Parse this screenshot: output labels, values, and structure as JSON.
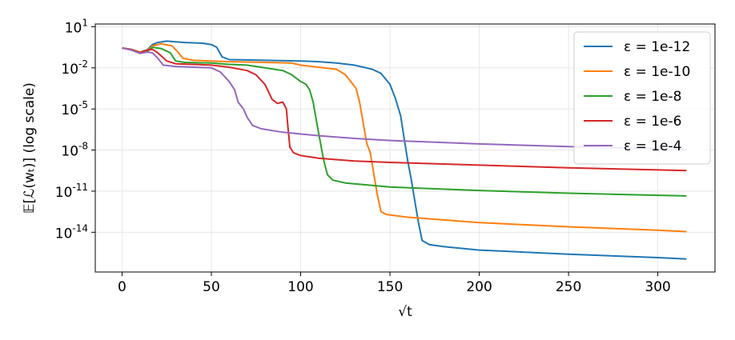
{
  "chart_data": {
    "type": "line",
    "xlabel": "√t",
    "ylabel": "𝔼[ℒ(wₜ)] (log scale)",
    "xlim": [
      -15,
      332
    ],
    "ylim_log10": [
      -16.9,
      1.2
    ],
    "y_scale": "log",
    "grid": true,
    "legend_position": "top-right",
    "x_ticks": [
      0,
      50,
      100,
      150,
      200,
      250,
      300
    ],
    "y_ticks": [
      {
        "value": 1,
        "base": "10",
        "exp": "1"
      },
      {
        "value": -2,
        "base": "10",
        "exp": "-2"
      },
      {
        "value": -5,
        "base": "10",
        "exp": "-5"
      },
      {
        "value": -8,
        "base": "10",
        "exp": "-8"
      },
      {
        "value": -11,
        "base": "10",
        "exp": "-11"
      },
      {
        "value": -14,
        "base": "10",
        "exp": "-14"
      }
    ],
    "series": [
      {
        "name": "ε = 1e-12",
        "color": "#1f77b4",
        "points": [
          [
            0,
            -0.55
          ],
          [
            5,
            -0.65
          ],
          [
            10,
            -0.85
          ],
          [
            14,
            -0.7
          ],
          [
            17,
            -0.3
          ],
          [
            20,
            -0.15
          ],
          [
            25,
            -0.05
          ],
          [
            35,
            -0.15
          ],
          [
            45,
            -0.2
          ],
          [
            50,
            -0.3
          ],
          [
            53,
            -0.5
          ],
          [
            56,
            -1.2
          ],
          [
            60,
            -1.4
          ],
          [
            80,
            -1.45
          ],
          [
            100,
            -1.5
          ],
          [
            110,
            -1.55
          ],
          [
            120,
            -1.65
          ],
          [
            130,
            -1.8
          ],
          [
            140,
            -2.1
          ],
          [
            145,
            -2.4
          ],
          [
            150,
            -3.2
          ],
          [
            153,
            -4.2
          ],
          [
            156,
            -5.5
          ],
          [
            158,
            -7.2
          ],
          [
            160,
            -8.8
          ],
          [
            162,
            -10.2
          ],
          [
            164,
            -11.8
          ],
          [
            166,
            -13.3
          ],
          [
            168,
            -14.6
          ],
          [
            172,
            -14.9
          ],
          [
            180,
            -15.05
          ],
          [
            200,
            -15.3
          ],
          [
            250,
            -15.6
          ],
          [
            300,
            -15.85
          ],
          [
            316,
            -15.95
          ]
        ]
      },
      {
        "name": "ε = 1e-10",
        "color": "#ff7f0e",
        "points": [
          [
            0,
            -0.55
          ],
          [
            5,
            -0.65
          ],
          [
            10,
            -0.85
          ],
          [
            14,
            -0.75
          ],
          [
            17,
            -0.4
          ],
          [
            22,
            -0.25
          ],
          [
            28,
            -0.4
          ],
          [
            31,
            -0.8
          ],
          [
            34,
            -1.3
          ],
          [
            40,
            -1.45
          ],
          [
            60,
            -1.55
          ],
          [
            80,
            -1.6
          ],
          [
            95,
            -1.65
          ],
          [
            100,
            -1.8
          ],
          [
            110,
            -1.95
          ],
          [
            120,
            -2.1
          ],
          [
            125,
            -2.5
          ],
          [
            128,
            -3.0
          ],
          [
            131,
            -3.5
          ],
          [
            133,
            -4.5
          ],
          [
            135,
            -6.0
          ],
          [
            137,
            -7.5
          ],
          [
            139,
            -8.2
          ],
          [
            141,
            -9.8
          ],
          [
            143,
            -11.3
          ],
          [
            145,
            -12.5
          ],
          [
            148,
            -12.7
          ],
          [
            160,
            -12.9
          ],
          [
            200,
            -13.3
          ],
          [
            250,
            -13.6
          ],
          [
            300,
            -13.85
          ],
          [
            316,
            -13.95
          ]
        ]
      },
      {
        "name": "ε = 1e-8",
        "color": "#2ca02c",
        "points": [
          [
            0,
            -0.55
          ],
          [
            5,
            -0.65
          ],
          [
            10,
            -0.9
          ],
          [
            14,
            -0.8
          ],
          [
            17,
            -0.5
          ],
          [
            22,
            -0.6
          ],
          [
            27,
            -0.9
          ],
          [
            30,
            -1.5
          ],
          [
            35,
            -1.6
          ],
          [
            50,
            -1.65
          ],
          [
            60,
            -1.75
          ],
          [
            70,
            -1.8
          ],
          [
            80,
            -2.0
          ],
          [
            90,
            -2.2
          ],
          [
            95,
            -2.5
          ],
          [
            100,
            -3.0
          ],
          [
            103,
            -3.2
          ],
          [
            105,
            -3.6
          ],
          [
            107,
            -4.5
          ],
          [
            109,
            -6.0
          ],
          [
            111,
            -7.4
          ],
          [
            113,
            -8.8
          ],
          [
            115,
            -9.8
          ],
          [
            118,
            -10.2
          ],
          [
            125,
            -10.4
          ],
          [
            150,
            -10.7
          ],
          [
            200,
            -10.95
          ],
          [
            250,
            -11.15
          ],
          [
            300,
            -11.3
          ],
          [
            316,
            -11.35
          ]
        ]
      },
      {
        "name": "ε = 1e-6",
        "color": "#d62728",
        "points": [
          [
            0,
            -0.55
          ],
          [
            5,
            -0.65
          ],
          [
            10,
            -0.9
          ],
          [
            14,
            -0.7
          ],
          [
            17,
            -0.65
          ],
          [
            20,
            -0.9
          ],
          [
            25,
            -1.5
          ],
          [
            30,
            -1.7
          ],
          [
            40,
            -1.75
          ],
          [
            50,
            -1.8
          ],
          [
            60,
            -1.95
          ],
          [
            70,
            -2.2
          ],
          [
            75,
            -2.5
          ],
          [
            80,
            -3.2
          ],
          [
            84,
            -4.3
          ],
          [
            87,
            -4.6
          ],
          [
            90,
            -4.5
          ],
          [
            92,
            -5.0
          ],
          [
            93,
            -6.5
          ],
          [
            94,
            -7.8
          ],
          [
            96,
            -8.2
          ],
          [
            100,
            -8.4
          ],
          [
            110,
            -8.6
          ],
          [
            130,
            -8.8
          ],
          [
            150,
            -8.9
          ],
          [
            200,
            -9.1
          ],
          [
            250,
            -9.3
          ],
          [
            300,
            -9.45
          ],
          [
            316,
            -9.5
          ]
        ]
      },
      {
        "name": "ε = 1e-4",
        "color": "#9467bd",
        "points": [
          [
            0,
            -0.55
          ],
          [
            5,
            -0.7
          ],
          [
            10,
            -0.95
          ],
          [
            14,
            -0.85
          ],
          [
            17,
            -0.9
          ],
          [
            20,
            -1.3
          ],
          [
            23,
            -1.8
          ],
          [
            30,
            -1.9
          ],
          [
            40,
            -1.95
          ],
          [
            50,
            -2.0
          ],
          [
            55,
            -2.3
          ],
          [
            60,
            -3.0
          ],
          [
            63,
            -3.6
          ],
          [
            65,
            -4.5
          ],
          [
            68,
            -5.0
          ],
          [
            70,
            -5.6
          ],
          [
            73,
            -6.2
          ],
          [
            78,
            -6.45
          ],
          [
            90,
            -6.7
          ],
          [
            110,
            -6.95
          ],
          [
            130,
            -7.15
          ],
          [
            150,
            -7.3
          ],
          [
            200,
            -7.55
          ],
          [
            250,
            -7.75
          ],
          [
            300,
            -7.9
          ],
          [
            316,
            -7.95
          ]
        ]
      }
    ]
  }
}
